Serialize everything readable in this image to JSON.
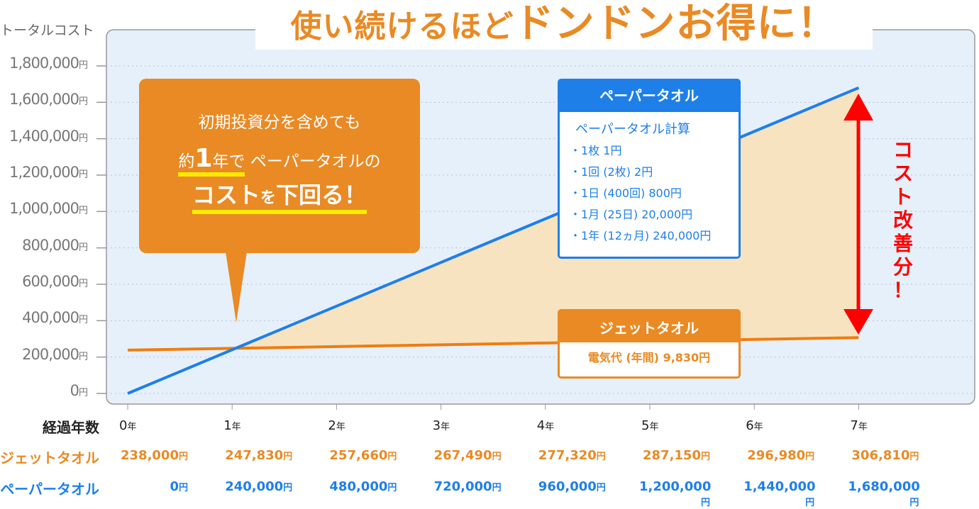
{
  "title": {
    "part1": "使い続けるほど",
    "part2": "ドンドンお得に！"
  },
  "colors": {
    "jet": "#e98a24",
    "paper": "#1e7fe8",
    "fill": "#f8e3c0",
    "plot_bg": "#e6f0fa",
    "arrow": "#ff0000",
    "highlight": "#ffeb00"
  },
  "callout": {
    "line1": "初期投資分を含めても",
    "line2_pre": "約",
    "line2_num": "1",
    "line2_post": "年で",
    "line2_rest": " ペーパータオルの",
    "line3_a": "コスト",
    "line3_b": "を",
    "line3_c": "下回る！"
  },
  "paper_box": {
    "title": "ペーパータオル",
    "subtitle": "ペーパータオル計算",
    "items": [
      "・1枚 1円",
      "・1回 (2枚) 2円",
      "・1日 (400回) 800円",
      "・1月 (25日) 20,000円",
      "・1年 (12ヵ月) 240,000円"
    ]
  },
  "jet_box": {
    "title": "ジェットタオル",
    "body": "電気代 (年間) 9,830円"
  },
  "saving_label": [
    "コ",
    "ス",
    "ト",
    "改",
    "善",
    "分",
    "！"
  ],
  "chart_data": {
    "type": "line",
    "ylabel": "トータルコスト",
    "ylim": [
      0,
      1800000
    ],
    "yticks": [
      "0",
      "200,000",
      "400,000",
      "600,000",
      "800,000",
      "1,000,000",
      "1,200,000",
      "1,400,000",
      "1,600,000",
      "1,800,000"
    ],
    "ytick_unit": "円",
    "grid": true,
    "x": [
      0,
      1,
      2,
      3,
      4,
      5,
      6,
      7
    ],
    "x_unit": "年",
    "xlabel": "経過年数",
    "series": [
      {
        "name": "ジェットタオル",
        "values": [
          238000,
          247830,
          257660,
          267490,
          277320,
          287150,
          296980,
          306810
        ],
        "labels": [
          "238,000",
          "247,830",
          "257,660",
          "267,490",
          "277,320",
          "287,150",
          "296,980",
          "306,810"
        ]
      },
      {
        "name": "ペーパータオル",
        "values": [
          0,
          240000,
          480000,
          720000,
          960000,
          1200000,
          1440000,
          1680000
        ],
        "labels": [
          "0",
          "240,000",
          "480,000",
          "720,000",
          "960,000",
          "1,200,000",
          "1,440,000",
          "1,680,000"
        ]
      }
    ],
    "value_unit": "円"
  }
}
